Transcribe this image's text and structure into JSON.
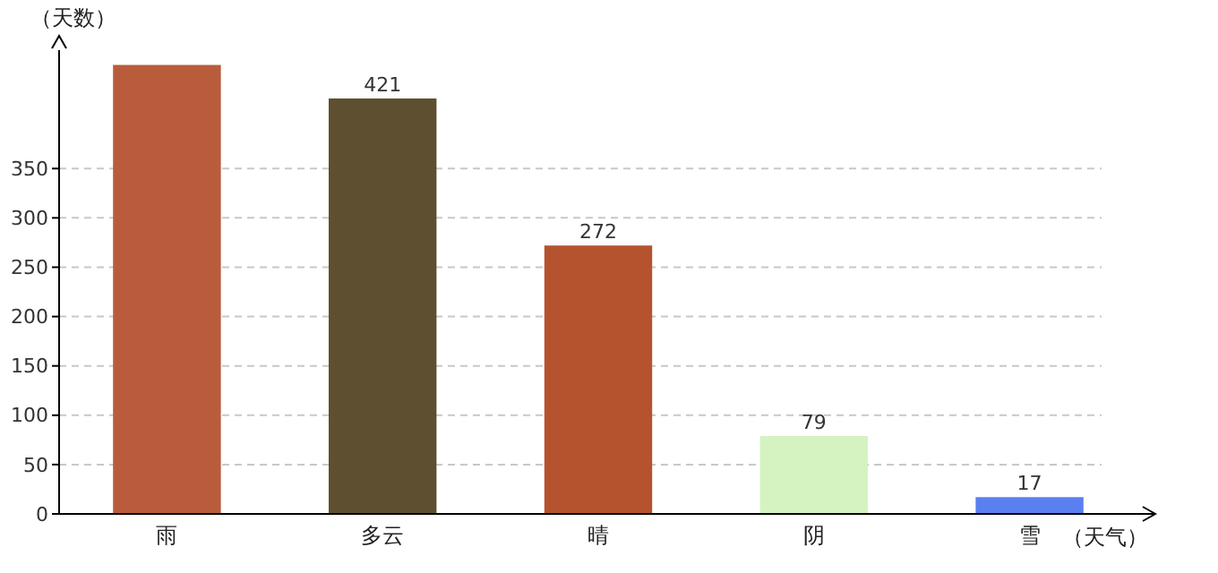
{
  "chart_data": {
    "type": "bar",
    "xlabel": "（天气）",
    "ylabel": "（天数）",
    "categories": [
      "雨",
      "多云",
      "晴",
      "阴",
      "雪"
    ],
    "values": [
      455,
      421,
      272,
      79,
      17
    ],
    "value_labels": [
      null,
      "421",
      "272",
      "79",
      "17"
    ],
    "colors": [
      "#b85c3c",
      "#5e4f30",
      "#b5532f",
      "#d4f3c0",
      "#5a7ff0"
    ],
    "ylim": [
      0,
      470
    ],
    "yticks": [
      0,
      50,
      100,
      150,
      200,
      250,
      300,
      350
    ],
    "grid": "y"
  }
}
